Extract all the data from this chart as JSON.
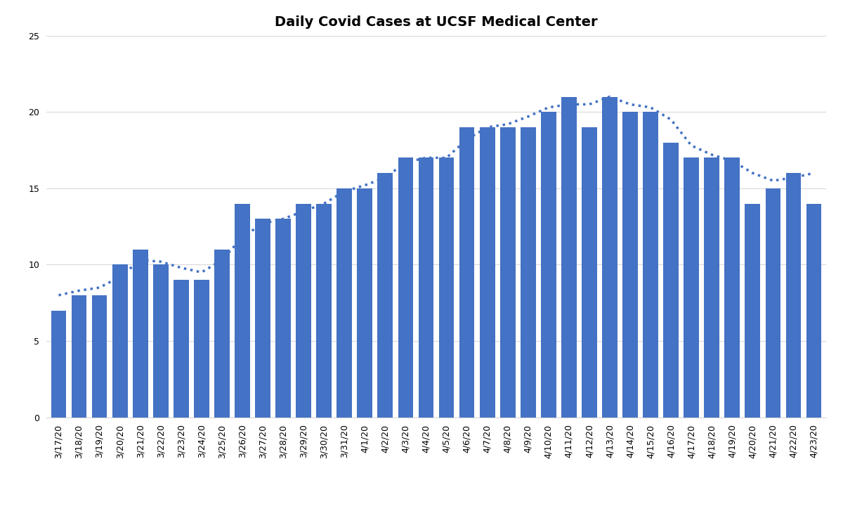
{
  "title": "Daily Covid Cases at UCSF Medical Center",
  "categories": [
    "3/17/20",
    "3/18/20",
    "3/19/20",
    "3/20/20",
    "3/21/20",
    "3/22/20",
    "3/23/20",
    "3/24/20",
    "3/25/20",
    "3/26/20",
    "3/27/20",
    "3/28/20",
    "3/29/20",
    "3/30/20",
    "3/31/20",
    "4/1/20",
    "4/2/20",
    "4/3/20",
    "4/4/20",
    "4/5/20",
    "4/6/20",
    "4/7/20",
    "4/8/20",
    "4/9/20",
    "4/10/20",
    "4/11/20",
    "4/12/20",
    "4/13/20",
    "4/14/20",
    "4/15/20",
    "4/16/20",
    "4/17/20",
    "4/18/20",
    "4/19/20",
    "4/20/20",
    "4/21/20",
    "4/22/20",
    "4/23/20"
  ],
  "values": [
    7,
    8,
    8,
    10,
    11,
    10,
    9,
    9,
    11,
    14,
    13,
    13,
    14,
    14,
    15,
    15,
    16,
    17,
    17,
    17,
    19,
    19,
    19,
    19,
    20,
    21,
    19,
    21,
    20,
    20,
    18,
    17,
    17,
    17,
    14,
    15,
    16,
    14
  ],
  "trend": [
    8.0,
    8.3,
    8.5,
    9.2,
    10.3,
    10.2,
    9.8,
    9.5,
    10.3,
    11.8,
    12.7,
    13.0,
    13.5,
    14.0,
    14.8,
    15.2,
    15.7,
    16.7,
    17.0,
    17.0,
    18.2,
    19.0,
    19.2,
    19.7,
    20.3,
    20.5,
    20.5,
    21.0,
    20.5,
    20.3,
    19.5,
    17.8,
    17.2,
    16.8,
    16.0,
    15.5,
    15.7,
    16.0
  ],
  "bar_color": "#4472C4",
  "trend_color": "#4472C4",
  "background_color": "#FFFFFF",
  "ylim": [
    0,
    25
  ],
  "yticks": [
    0,
    5,
    10,
    15,
    20,
    25
  ],
  "grid_color": "#D9D9D9",
  "title_fontsize": 14,
  "tick_fontsize": 9
}
